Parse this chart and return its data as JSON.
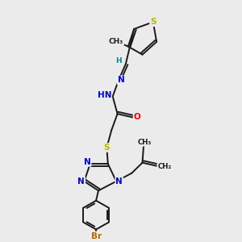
{
  "bg_color": "#ebebeb",
  "bond_color": "#1a1a1a",
  "atom_colors": {
    "S": "#b8b800",
    "N": "#0000dd",
    "O": "#ee0000",
    "Br": "#bb6600",
    "C": "#1a1a1a",
    "H": "#008888"
  },
  "figsize": [
    3.0,
    3.0
  ],
  "dpi": 100,
  "xlim": [
    0,
    10
  ],
  "ylim": [
    0,
    10
  ]
}
